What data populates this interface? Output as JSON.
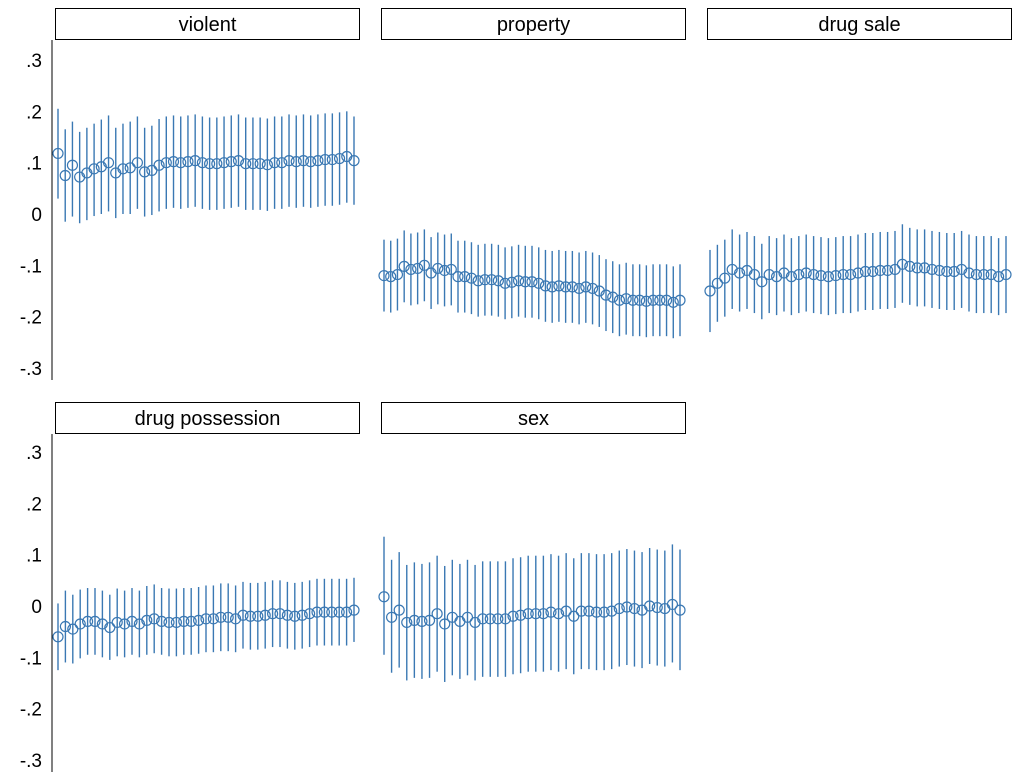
{
  "chart_data": {
    "type": "scatter",
    "style": "point estimates (hollow circles) with vertical confidence-interval bars, small multiples",
    "colors": {
      "marker": "#3a78b3",
      "ci": "#3a78b3",
      "axis": "#000000",
      "strip_border": "#000000",
      "strip_fill": "#ffffff"
    },
    "yaxis": {
      "ylim": [
        -0.3,
        0.3
      ],
      "ticks": [
        0.3,
        0.2,
        0.1,
        0,
        -0.1,
        -0.2,
        -0.3
      ],
      "tick_labels": [
        ".3",
        ".2",
        ".1",
        "0",
        "-.1",
        "-.2",
        "-.3"
      ]
    },
    "grid": false,
    "panels": [
      {
        "title": "violent",
        "estimates": [
          0.118,
          0.075,
          0.095,
          0.072,
          0.08,
          0.088,
          0.092,
          0.1,
          0.08,
          0.088,
          0.09,
          0.1,
          0.082,
          0.085,
          0.095,
          0.1,
          0.102,
          0.1,
          0.102,
          0.104,
          0.1,
          0.098,
          0.098,
          0.1,
          0.102,
          0.104,
          0.098,
          0.098,
          0.098,
          0.096,
          0.1,
          0.1,
          0.104,
          0.102,
          0.104,
          0.102,
          0.104,
          0.106,
          0.106,
          0.108,
          0.112,
          0.104
        ],
        "ci_lower": [
          0.03,
          -0.015,
          -0.005,
          -0.018,
          -0.012,
          -0.004,
          0.0,
          0.005,
          -0.008,
          0.0,
          0.0,
          0.01,
          -0.005,
          -0.002,
          0.005,
          0.01,
          0.012,
          0.01,
          0.012,
          0.014,
          0.01,
          0.008,
          0.008,
          0.01,
          0.012,
          0.014,
          0.008,
          0.008,
          0.008,
          0.006,
          0.01,
          0.01,
          0.014,
          0.012,
          0.014,
          0.012,
          0.014,
          0.016,
          0.016,
          0.018,
          0.022,
          0.018
        ],
        "ci_upper": [
          0.205,
          0.165,
          0.18,
          0.16,
          0.168,
          0.176,
          0.184,
          0.192,
          0.168,
          0.176,
          0.18,
          0.19,
          0.168,
          0.172,
          0.185,
          0.19,
          0.192,
          0.19,
          0.192,
          0.194,
          0.19,
          0.188,
          0.188,
          0.19,
          0.192,
          0.194,
          0.188,
          0.188,
          0.188,
          0.186,
          0.19,
          0.19,
          0.194,
          0.192,
          0.194,
          0.192,
          0.194,
          0.196,
          0.196,
          0.198,
          0.2,
          0.19
        ]
      },
      {
        "title": "property",
        "estimates": [
          -0.12,
          -0.122,
          -0.118,
          -0.102,
          -0.108,
          -0.106,
          -0.1,
          -0.115,
          -0.106,
          -0.11,
          -0.108,
          -0.122,
          -0.122,
          -0.125,
          -0.13,
          -0.128,
          -0.128,
          -0.13,
          -0.135,
          -0.133,
          -0.13,
          -0.132,
          -0.132,
          -0.135,
          -0.14,
          -0.142,
          -0.14,
          -0.142,
          -0.142,
          -0.145,
          -0.142,
          -0.145,
          -0.15,
          -0.158,
          -0.162,
          -0.168,
          -0.165,
          -0.168,
          -0.168,
          -0.17,
          -0.168,
          -0.168,
          -0.168,
          -0.172,
          -0.168
        ],
        "ci_lower": [
          -0.19,
          -0.192,
          -0.188,
          -0.172,
          -0.178,
          -0.176,
          -0.17,
          -0.185,
          -0.176,
          -0.18,
          -0.178,
          -0.192,
          -0.192,
          -0.195,
          -0.2,
          -0.198,
          -0.198,
          -0.2,
          -0.205,
          -0.203,
          -0.2,
          -0.202,
          -0.202,
          -0.205,
          -0.21,
          -0.212,
          -0.21,
          -0.212,
          -0.212,
          -0.215,
          -0.212,
          -0.215,
          -0.22,
          -0.228,
          -0.232,
          -0.238,
          -0.235,
          -0.238,
          -0.238,
          -0.24,
          -0.238,
          -0.238,
          -0.238,
          -0.242,
          -0.238
        ],
        "ci_upper": [
          -0.05,
          -0.052,
          -0.048,
          -0.032,
          -0.038,
          -0.036,
          -0.03,
          -0.045,
          -0.036,
          -0.04,
          -0.038,
          -0.052,
          -0.052,
          -0.055,
          -0.06,
          -0.058,
          -0.058,
          -0.06,
          -0.065,
          -0.063,
          -0.06,
          -0.062,
          -0.062,
          -0.065,
          -0.07,
          -0.072,
          -0.07,
          -0.072,
          -0.072,
          -0.075,
          -0.072,
          -0.075,
          -0.08,
          -0.088,
          -0.092,
          -0.098,
          -0.095,
          -0.098,
          -0.098,
          -0.1,
          -0.098,
          -0.098,
          -0.098,
          -0.102,
          -0.098
        ]
      },
      {
        "title": "drug sale",
        "estimates": [
          -0.15,
          -0.135,
          -0.125,
          -0.108,
          -0.115,
          -0.11,
          -0.118,
          -0.132,
          -0.118,
          -0.122,
          -0.115,
          -0.122,
          -0.118,
          -0.115,
          -0.118,
          -0.12,
          -0.122,
          -0.12,
          -0.118,
          -0.118,
          -0.115,
          -0.112,
          -0.112,
          -0.11,
          -0.11,
          -0.108,
          -0.098,
          -0.102,
          -0.105,
          -0.105,
          -0.108,
          -0.11,
          -0.112,
          -0.112,
          -0.108,
          -0.115,
          -0.118,
          -0.118,
          -0.118,
          -0.122,
          -0.118
        ],
        "ci_lower": [
          -0.23,
          -0.21,
          -0.2,
          -0.185,
          -0.19,
          -0.185,
          -0.193,
          -0.205,
          -0.193,
          -0.197,
          -0.19,
          -0.197,
          -0.193,
          -0.19,
          -0.193,
          -0.195,
          -0.197,
          -0.195,
          -0.193,
          -0.193,
          -0.19,
          -0.187,
          -0.187,
          -0.185,
          -0.185,
          -0.183,
          -0.173,
          -0.177,
          -0.18,
          -0.18,
          -0.183,
          -0.185,
          -0.187,
          -0.187,
          -0.183,
          -0.19,
          -0.193,
          -0.193,
          -0.193,
          -0.197,
          -0.193
        ],
        "ci_upper": [
          -0.07,
          -0.06,
          -0.05,
          -0.03,
          -0.04,
          -0.035,
          -0.043,
          -0.058,
          -0.043,
          -0.047,
          -0.04,
          -0.047,
          -0.043,
          -0.04,
          -0.043,
          -0.045,
          -0.047,
          -0.045,
          -0.043,
          -0.043,
          -0.04,
          -0.037,
          -0.037,
          -0.035,
          -0.035,
          -0.033,
          -0.02,
          -0.027,
          -0.03,
          -0.03,
          -0.033,
          -0.035,
          -0.037,
          -0.037,
          -0.033,
          -0.04,
          -0.043,
          -0.043,
          -0.043,
          -0.047,
          -0.043
        ]
      },
      {
        "title": "drug possession",
        "estimates": [
          -0.06,
          -0.04,
          -0.045,
          -0.035,
          -0.03,
          -0.03,
          -0.035,
          -0.042,
          -0.032,
          -0.035,
          -0.03,
          -0.035,
          -0.028,
          -0.025,
          -0.03,
          -0.032,
          -0.032,
          -0.03,
          -0.03,
          -0.028,
          -0.025,
          -0.025,
          -0.022,
          -0.022,
          -0.025,
          -0.018,
          -0.02,
          -0.02,
          -0.018,
          -0.015,
          -0.015,
          -0.018,
          -0.02,
          -0.018,
          -0.015,
          -0.012,
          -0.012,
          -0.012,
          -0.012,
          -0.012,
          -0.008
        ],
        "ci_lower": [
          -0.125,
          -0.11,
          -0.112,
          -0.102,
          -0.095,
          -0.095,
          -0.1,
          -0.105,
          -0.098,
          -0.1,
          -0.095,
          -0.1,
          -0.095,
          -0.092,
          -0.095,
          -0.098,
          -0.098,
          -0.095,
          -0.095,
          -0.093,
          -0.09,
          -0.09,
          -0.088,
          -0.088,
          -0.09,
          -0.083,
          -0.085,
          -0.085,
          -0.083,
          -0.08,
          -0.08,
          -0.083,
          -0.085,
          -0.083,
          -0.08,
          -0.077,
          -0.077,
          -0.077,
          -0.077,
          -0.077,
          -0.07
        ],
        "ci_upper": [
          0.005,
          0.03,
          0.022,
          0.032,
          0.035,
          0.035,
          0.03,
          0.022,
          0.034,
          0.03,
          0.035,
          0.03,
          0.039,
          0.042,
          0.035,
          0.034,
          0.034,
          0.035,
          0.035,
          0.037,
          0.04,
          0.04,
          0.044,
          0.044,
          0.04,
          0.047,
          0.045,
          0.045,
          0.047,
          0.05,
          0.05,
          0.047,
          0.045,
          0.047,
          0.05,
          0.053,
          0.053,
          0.053,
          0.053,
          0.053,
          0.055
        ]
      },
      {
        "title": "sex",
        "estimates": [
          0.018,
          -0.022,
          -0.008,
          -0.032,
          -0.028,
          -0.03,
          -0.028,
          -0.015,
          -0.035,
          -0.022,
          -0.03,
          -0.022,
          -0.032,
          -0.025,
          -0.025,
          -0.025,
          -0.025,
          -0.02,
          -0.018,
          -0.015,
          -0.015,
          -0.015,
          -0.012,
          -0.015,
          -0.01,
          -0.02,
          -0.01,
          -0.01,
          -0.012,
          -0.012,
          -0.01,
          -0.005,
          -0.002,
          -0.005,
          -0.008,
          0.0,
          -0.003,
          -0.005,
          0.003,
          -0.008
        ],
        "ci_lower": [
          -0.095,
          -0.13,
          -0.12,
          -0.145,
          -0.14,
          -0.142,
          -0.14,
          -0.128,
          -0.148,
          -0.135,
          -0.142,
          -0.135,
          -0.145,
          -0.138,
          -0.138,
          -0.138,
          -0.138,
          -0.133,
          -0.131,
          -0.128,
          -0.128,
          -0.128,
          -0.125,
          -0.128,
          -0.123,
          -0.133,
          -0.123,
          -0.123,
          -0.125,
          -0.125,
          -0.123,
          -0.118,
          -0.115,
          -0.118,
          -0.121,
          -0.113,
          -0.116,
          -0.118,
          -0.11,
          -0.125
        ],
        "ci_upper": [
          0.135,
          0.09,
          0.105,
          0.08,
          0.085,
          0.082,
          0.085,
          0.098,
          0.078,
          0.09,
          0.082,
          0.09,
          0.08,
          0.087,
          0.087,
          0.087,
          0.087,
          0.093,
          0.095,
          0.098,
          0.098,
          0.098,
          0.101,
          0.098,
          0.103,
          0.093,
          0.103,
          0.103,
          0.101,
          0.101,
          0.103,
          0.108,
          0.111,
          0.108,
          0.105,
          0.113,
          0.11,
          0.108,
          0.12,
          0.11
        ]
      }
    ]
  }
}
